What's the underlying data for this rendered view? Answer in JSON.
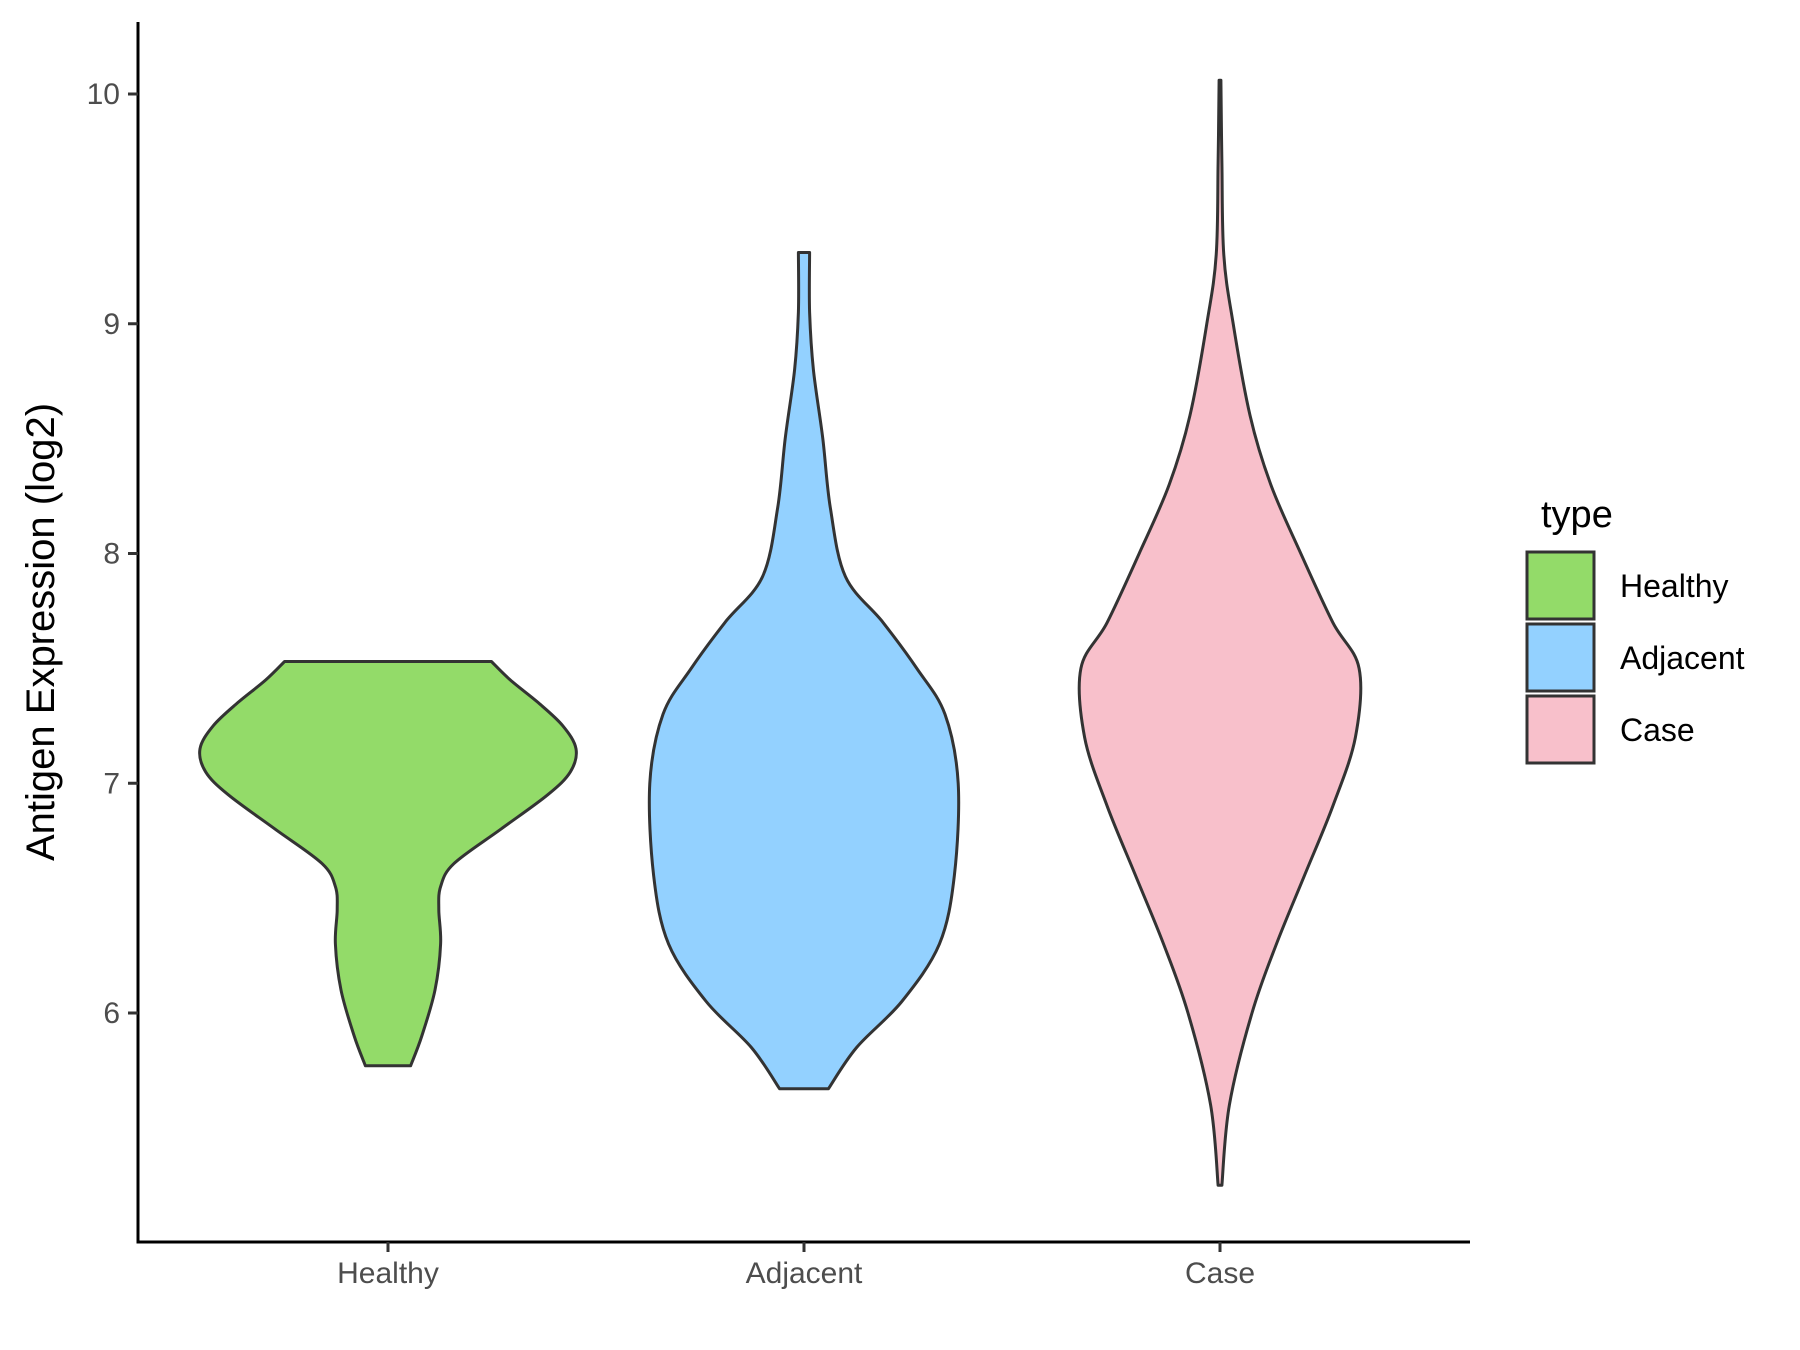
{
  "chart_data": {
    "type": "violin",
    "title": "",
    "xlabel": "",
    "ylabel": "Antigen Expression (log2)",
    "ylim": [
      5.05,
      10.35
    ],
    "yticks": [
      6,
      7,
      8,
      9,
      10
    ],
    "categories": [
      "Healthy",
      "Adjacent",
      "Case"
    ],
    "series": [
      {
        "name": "Healthy",
        "color": "#93DB69",
        "min": 5.77,
        "max": 7.53,
        "profile": [
          [
            5.77,
            0.12
          ],
          [
            5.9,
            0.18
          ],
          [
            6.1,
            0.25
          ],
          [
            6.3,
            0.28
          ],
          [
            6.45,
            0.27
          ],
          [
            6.55,
            0.28
          ],
          [
            6.65,
            0.35
          ],
          [
            6.8,
            0.6
          ],
          [
            6.95,
            0.85
          ],
          [
            7.05,
            0.97
          ],
          [
            7.15,
            1.0
          ],
          [
            7.25,
            0.93
          ],
          [
            7.35,
            0.8
          ],
          [
            7.45,
            0.65
          ],
          [
            7.53,
            0.55
          ]
        ]
      },
      {
        "name": "Adjacent",
        "color": "#93D1FF",
        "min": 5.67,
        "max": 9.31,
        "profile": [
          [
            5.67,
            0.13
          ],
          [
            5.85,
            0.28
          ],
          [
            6.05,
            0.52
          ],
          [
            6.3,
            0.72
          ],
          [
            6.6,
            0.8
          ],
          [
            7.0,
            0.82
          ],
          [
            7.3,
            0.75
          ],
          [
            7.5,
            0.6
          ],
          [
            7.7,
            0.42
          ],
          [
            7.9,
            0.22
          ],
          [
            8.2,
            0.14
          ],
          [
            8.5,
            0.1
          ],
          [
            8.8,
            0.05
          ],
          [
            9.05,
            0.03
          ],
          [
            9.31,
            0.03
          ]
        ]
      },
      {
        "name": "Case",
        "color": "#F8C0CB",
        "min": 5.25,
        "max": 10.06,
        "profile": [
          [
            5.25,
            0.01
          ],
          [
            5.6,
            0.05
          ],
          [
            6.0,
            0.17
          ],
          [
            6.3,
            0.3
          ],
          [
            6.6,
            0.45
          ],
          [
            6.9,
            0.6
          ],
          [
            7.2,
            0.72
          ],
          [
            7.5,
            0.74
          ],
          [
            7.7,
            0.6
          ],
          [
            8.0,
            0.43
          ],
          [
            8.3,
            0.27
          ],
          [
            8.6,
            0.16
          ],
          [
            9.0,
            0.07
          ],
          [
            9.3,
            0.02
          ],
          [
            9.7,
            0.01
          ],
          [
            10.06,
            0.005
          ]
        ]
      }
    ],
    "legend": {
      "title": "type",
      "position": "right",
      "entries": [
        "Healthy",
        "Adjacent",
        "Case"
      ]
    },
    "grid": false
  }
}
